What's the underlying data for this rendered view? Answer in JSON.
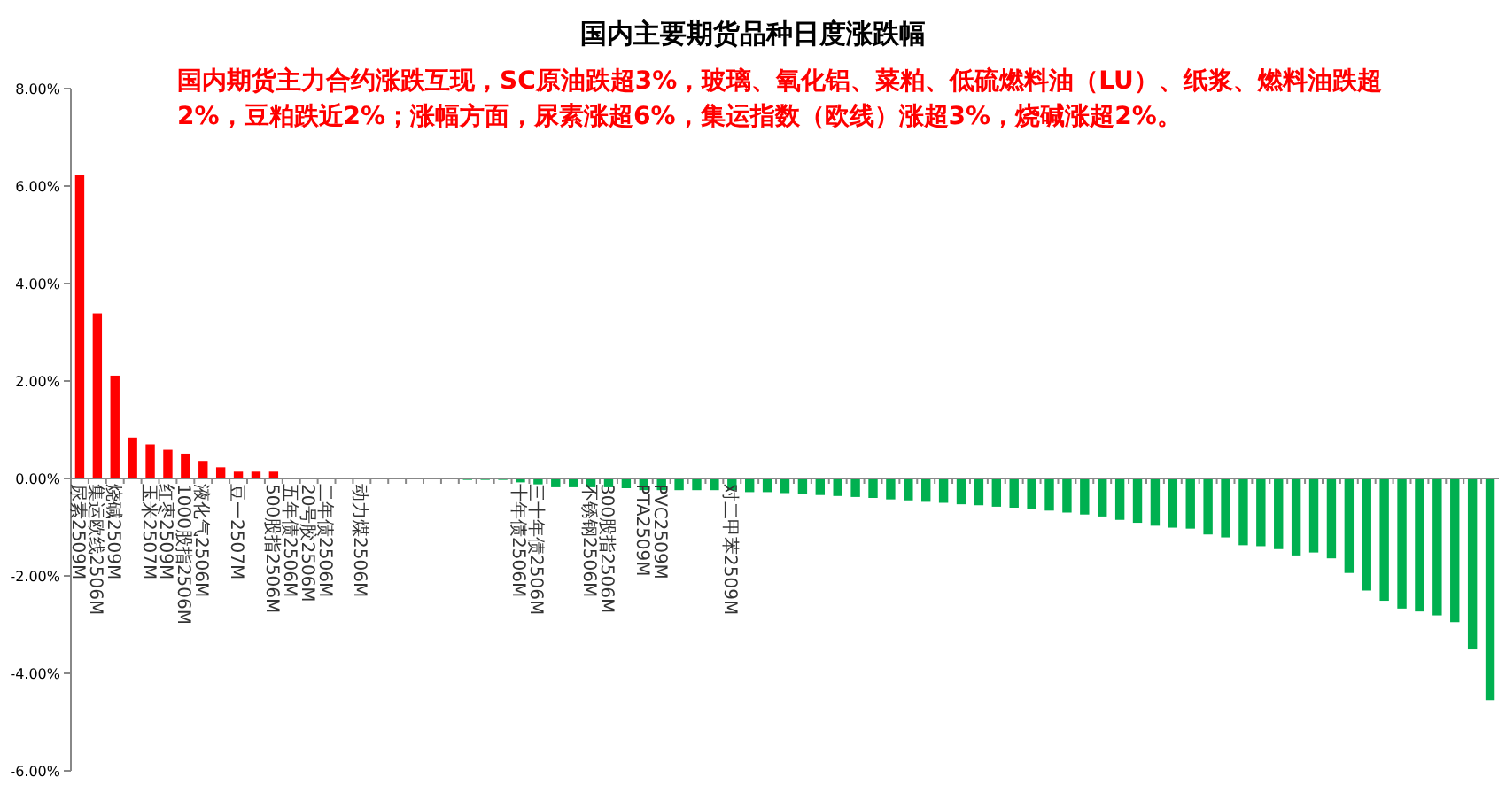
{
  "chart_data": {
    "type": "bar",
    "title": "国内主要期货品种日度涨跌幅",
    "subtitle": "国内期货主力合约涨跌互现，SC原油跌超3%，玻璃、氧化铝、菜粕、低硫燃料油（LU）、纸浆、燃料油跌超2%，豆粕跌近2%；涨幅方面，尿素涨超6%，集运指数（欧线）涨超3%，烧碱涨超2%。",
    "categories": [
      "尿素2509M",
      "集运欧线2506M",
      "烧碱2509M",
      null,
      "玉米2507M",
      "红枣2509M",
      "1000股指2506M",
      "液化气2506M",
      null,
      "豆一2507M",
      null,
      "500股指2506M",
      "五年债2506M",
      "20号胶2506M",
      "二年债2506M",
      null,
      "动力煤2506M",
      null,
      null,
      null,
      null,
      null,
      null,
      null,
      null,
      "十年债2506M",
      "三十年债2506M",
      null,
      null,
      "不锈钢2506M",
      "300股指2506M",
      null,
      "PTA2509M",
      "PVC2509M",
      null,
      null,
      null,
      "对二甲苯2509M",
      null,
      null,
      null,
      null,
      null,
      null,
      null,
      null,
      null,
      null,
      null,
      null,
      null,
      null,
      null,
      null,
      null,
      null,
      null,
      null,
      null,
      null,
      null,
      null,
      null,
      null,
      null,
      null,
      null,
      null,
      null,
      null,
      null,
      null,
      null,
      null,
      null,
      null,
      null,
      null,
      null,
      null,
      null
    ],
    "values": [
      6.22,
      3.39,
      2.11,
      0.84,
      0.7,
      0.59,
      0.51,
      0.36,
      0.23,
      0.14,
      0.14,
      0.14,
      0,
      0,
      0,
      0,
      0,
      0,
      0,
      0,
      0,
      0,
      -0.03,
      -0.03,
      -0.03,
      -0.08,
      -0.12,
      -0.18,
      -0.18,
      -0.18,
      -0.18,
      -0.2,
      -0.24,
      -0.24,
      -0.24,
      -0.24,
      -0.24,
      -0.24,
      -0.28,
      -0.28,
      -0.3,
      -0.32,
      -0.34,
      -0.36,
      -0.38,
      -0.4,
      -0.43,
      -0.45,
      -0.48,
      -0.5,
      -0.53,
      -0.55,
      -0.58,
      -0.6,
      -0.63,
      -0.66,
      -0.7,
      -0.74,
      -0.78,
      -0.85,
      -0.91,
      -0.97,
      -1.01,
      -1.03,
      -1.15,
      -1.21,
      -1.37,
      -1.39,
      -1.45,
      -1.58,
      -1.52,
      -1.64,
      -1.94,
      -2.3,
      -2.51,
      -2.67,
      -2.73,
      -2.81,
      -2.95,
      -3.51,
      -4.55
    ],
    "colors": [
      "#ff0000",
      "#ff0000",
      "#ff0000",
      "#ff0000",
      "#ff0000",
      "#ff0000",
      "#ff0000",
      "#ff0000",
      "#ff0000",
      "#ff0000",
      "#ff0000",
      "#ff0000",
      "#ff0000",
      "#ff0000",
      "#ff0000",
      "#ff0000",
      "#ff0000",
      "#ff0000",
      "#ff0000",
      "#ff0000",
      "#ff0000",
      "#ff0000",
      "#00b050",
      "#00b050",
      "#00b050",
      "#00b050",
      "#00b050",
      "#00b050",
      "#00b050",
      "#00b050",
      "#00b050",
      "#00b050",
      "#00b050",
      "#00b050",
      "#00b050",
      "#00b050",
      "#00b050",
      "#00b050",
      "#00b050",
      "#00b050",
      "#00b050",
      "#00b050",
      "#00b050",
      "#00b050",
      "#00b050",
      "#00b050",
      "#00b050",
      "#00b050",
      "#00b050",
      "#00b050",
      "#00b050",
      "#00b050",
      "#00b050",
      "#00b050",
      "#00b050",
      "#00b050",
      "#00b050",
      "#00b050",
      "#00b050",
      "#00b050",
      "#00b050",
      "#00b050",
      "#00b050",
      "#00b050",
      "#00b050",
      "#00b050",
      "#00b050",
      "#00b050",
      "#00b050",
      "#00b050",
      "#00b050",
      "#00b050",
      "#00b050",
      "#00b050",
      "#00b050",
      "#00b050",
      "#00b050",
      "#00b050",
      "#00b050",
      "#00b050",
      "#00b050"
    ],
    "ylim": [
      -6,
      8
    ],
    "yticks": [
      {
        "value": -6,
        "label": "-6.00%"
      },
      {
        "value": -4,
        "label": "-4.00%"
      },
      {
        "value": -2,
        "label": "-2.00%"
      },
      {
        "value": 0,
        "label": "0.00%"
      },
      {
        "value": 2,
        "label": "2.00%"
      },
      {
        "value": 4,
        "label": "4.00%"
      },
      {
        "value": 6,
        "label": "6.00%"
      },
      {
        "value": 8,
        "label": "8.00%"
      }
    ],
    "grid": false
  }
}
